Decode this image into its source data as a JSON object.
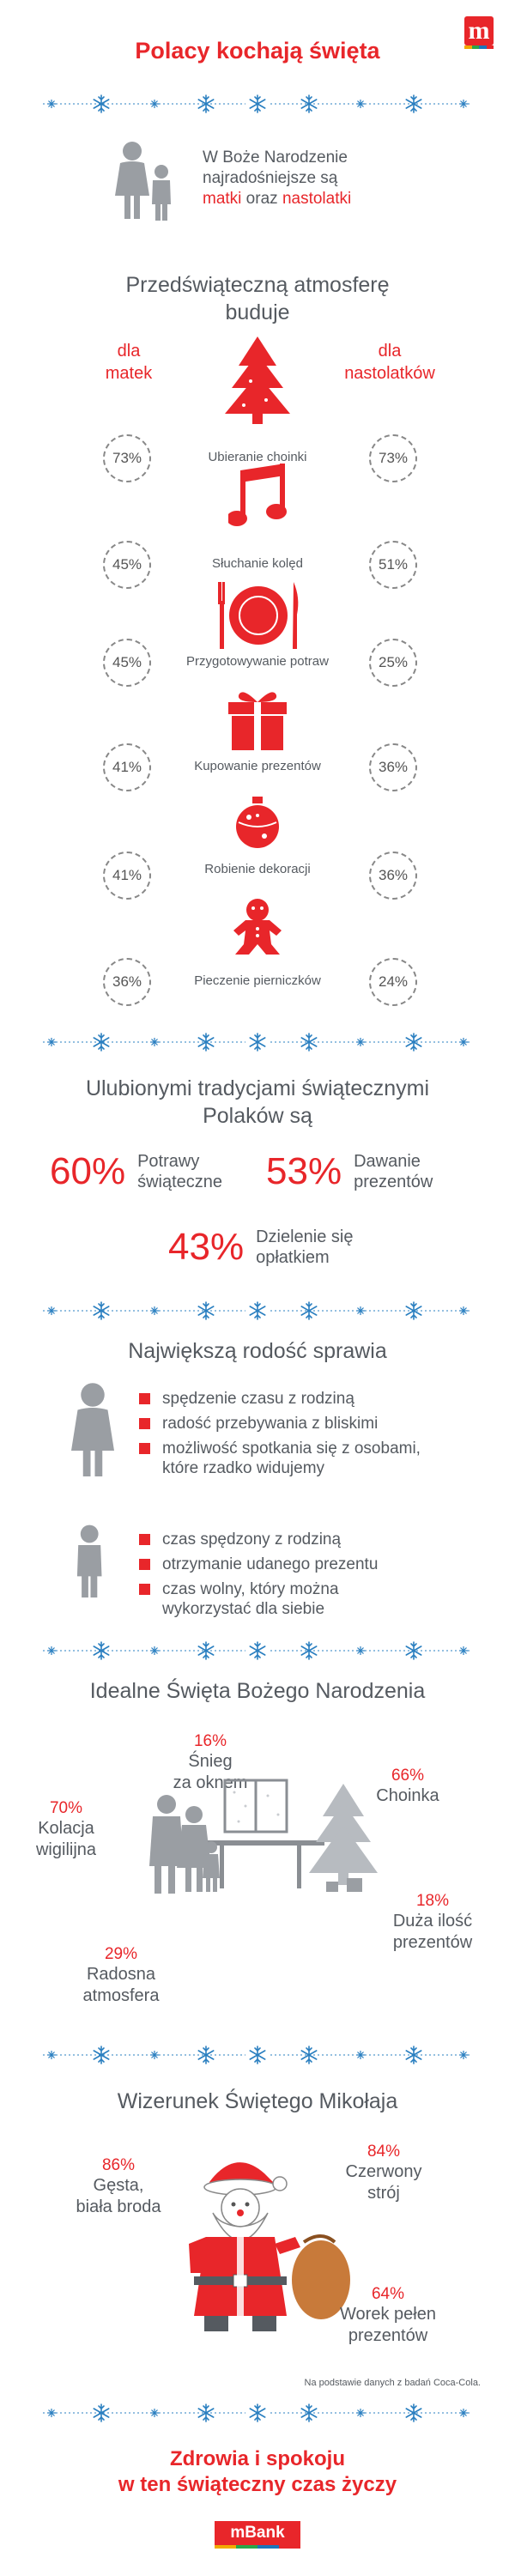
{
  "header": {
    "title": "Polacy kochają święta",
    "logo_letter": "m"
  },
  "intro": {
    "line1": "W Boże Narodzenie",
    "line2": "najradośniejsze są",
    "w1": "matki",
    "mid": " oraz ",
    "w2": "nastolatki"
  },
  "atmosphere": {
    "heading1": "Przedświąteczną atmosferę",
    "heading2": "buduje",
    "left_label1": "dla",
    "left_label2": "matek",
    "right_label1": "dla",
    "right_label2": "nastolatków",
    "activities": [
      {
        "label": "Ubieranie choinki",
        "mothers": "73%",
        "teens": "73%",
        "icon": "christmas-tree-icon"
      },
      {
        "label": "Słuchanie kolęd",
        "mothers": "45%",
        "teens": "51%",
        "icon": "music-note-icon"
      },
      {
        "label": "Przygotowywanie potraw",
        "mothers": "45%",
        "teens": "25%",
        "icon": "plate-cutlery-icon"
      },
      {
        "label": "Kupowanie prezentów",
        "mothers": "41%",
        "teens": "36%",
        "icon": "gift-icon"
      },
      {
        "label": "Robienie dekoracji",
        "mothers": "41%",
        "teens": "36%",
        "icon": "bauble-icon"
      },
      {
        "label": "Pieczenie pierniczków",
        "mothers": "36%",
        "teens": "24%",
        "icon": "gingerbread-icon"
      }
    ]
  },
  "traditions": {
    "heading1": "Ulubionymi tradycjami świątecznymi",
    "heading2": "Polaków są",
    "items": [
      {
        "pct": "60%",
        "l1": "Potrawy",
        "l2": "świąteczne"
      },
      {
        "pct": "53%",
        "l1": "Dawanie",
        "l2": "prezentów"
      },
      {
        "pct": "43%",
        "l1": "Dzielenie się",
        "l2": "opłatkiem"
      }
    ]
  },
  "joy": {
    "heading": "Największą rodość sprawia",
    "mothers": [
      "spędzenie czasu z rodziną",
      "radość przebywania z bliskimi",
      "możliwość spotkania się z osobami,",
      "które rzadko widujemy"
    ],
    "teens": [
      "czas spędzony z rodziną",
      "otrzymanie udanego prezentu",
      "czas wolny, który można",
      "wykorzystać dla siebie"
    ]
  },
  "ideal": {
    "heading": "Idealne Święta Bożego Narodzenia",
    "snow": {
      "pct": "16%",
      "l1": "Śnieg",
      "l2": "za oknem"
    },
    "tree": {
      "pct": "66%",
      "l1": "Choinka"
    },
    "supper": {
      "pct": "70%",
      "l1": "Kolacja",
      "l2": "wigilijna"
    },
    "gifts": {
      "pct": "18%",
      "l1": "Duża ilość",
      "l2": "prezentów"
    },
    "mood": {
      "pct": "29%",
      "l1": "Radosna",
      "l2": "atmosfera"
    }
  },
  "santa": {
    "heading": "Wizerunek Świętego Mikołaja",
    "beard": {
      "pct": "86%",
      "l1": "Gęsta,",
      "l2": "biała broda"
    },
    "suit": {
      "pct": "84%",
      "l1": "Czerwony",
      "l2": "strój"
    },
    "bag": {
      "pct": "64%",
      "l1": "Worek pełen",
      "l2": "prezentów"
    }
  },
  "source": "Na podstawie danych z badań Coca-Cola.",
  "footer": {
    "line1": "Zdrowia i spokoju",
    "line2": "w ten świąteczny czas życzy",
    "brand": "mBank"
  },
  "colors": {
    "accent": "#e8262a",
    "text": "#555a60",
    "snow": "#2a7fc0",
    "gray": "#9a9ea3"
  }
}
